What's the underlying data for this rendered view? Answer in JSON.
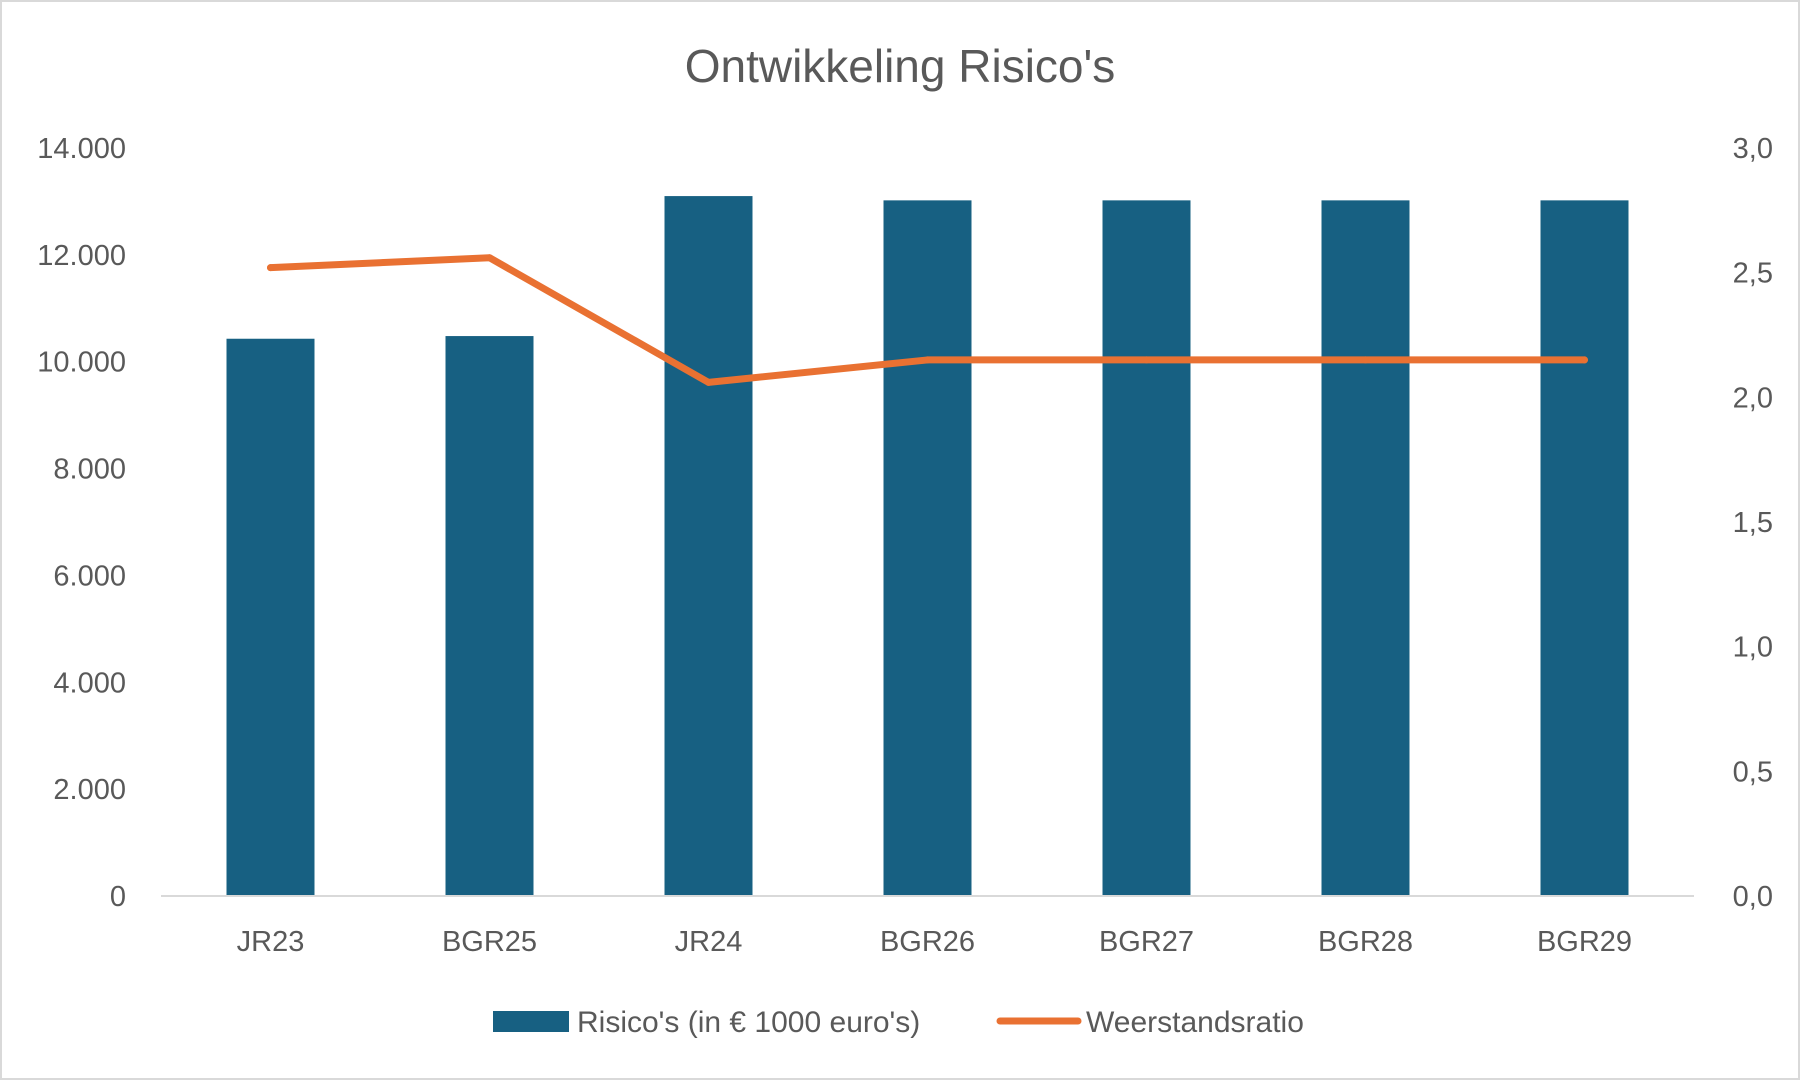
{
  "chart_data": {
    "type": "bar",
    "title": "Ontwikkeling Risico's",
    "categories": [
      "JR23",
      "BGR25",
      "JR24",
      "BGR26",
      "BGR27",
      "BGR28",
      "BGR29"
    ],
    "series": [
      {
        "name": "Risico's (in € 1000 euro's)",
        "type": "bar",
        "axis": "left",
        "color": "#176082",
        "values": [
          10430,
          10480,
          13100,
          13020,
          13020,
          13020,
          13020
        ]
      },
      {
        "name": "Weerstandsratio",
        "type": "line",
        "axis": "right",
        "color": "#e97132",
        "values": [
          2.52,
          2.56,
          2.06,
          2.15,
          2.15,
          2.15,
          2.15
        ]
      }
    ],
    "y_left": {
      "lim": [
        0,
        14000
      ],
      "ticks": [
        0,
        2000,
        4000,
        6000,
        8000,
        10000,
        12000,
        14000
      ],
      "tick_labels": [
        "0",
        "2.000",
        "4.000",
        "6.000",
        "8.000",
        "10.000",
        "12.000",
        "14.000"
      ]
    },
    "y_right": {
      "lim": [
        0,
        3
      ],
      "ticks": [
        0,
        0.5,
        1,
        1.5,
        2,
        2.5,
        3
      ],
      "tick_labels": [
        "0,0",
        "0,5",
        "1,0",
        "1,5",
        "2,0",
        "2,5",
        "3,0"
      ]
    },
    "grid": false,
    "legend_position": "bottom"
  }
}
